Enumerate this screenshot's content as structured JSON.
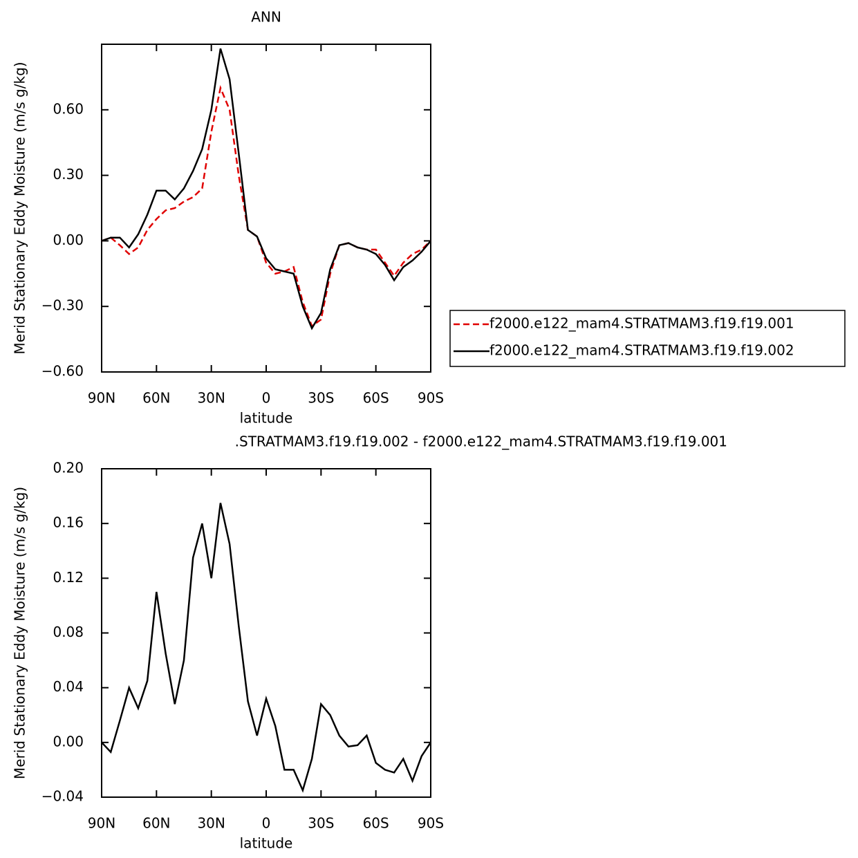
{
  "chart_data": [
    {
      "type": "line",
      "title": "ANN",
      "xlabel": "latitude",
      "ylabel": "Merid Stationary Eddy Moisture (m/s g/kg)",
      "x": [
        90,
        85,
        80,
        75,
        70,
        65,
        60,
        55,
        50,
        45,
        40,
        35,
        30,
        25,
        20,
        15,
        10,
        5,
        0,
        -5,
        -10,
        -15,
        -20,
        -25,
        -30,
        -35,
        -40,
        -45,
        -50,
        -55,
        -60,
        -65,
        -70,
        -75,
        -80,
        -85,
        -90
      ],
      "series": [
        {
          "name": "f2000.e122_mam4.STRATMAM3.f19.f19.001",
          "color": "#e00000",
          "dash": true,
          "values": [
            0,
            0.015,
            -0.02,
            -0.06,
            -0.03,
            0.05,
            0.1,
            0.14,
            0.15,
            0.18,
            0.2,
            0.24,
            0.5,
            0.7,
            0.6,
            0.3,
            0.05,
            0.02,
            -0.1,
            -0.15,
            -0.14,
            -0.12,
            -0.28,
            -0.39,
            -0.36,
            -0.15,
            -0.02,
            -0.01,
            -0.03,
            -0.04,
            -0.04,
            -0.1,
            -0.16,
            -0.1,
            -0.06,
            -0.04,
            0
          ]
        },
        {
          "name": "f2000.e122_mam4.STRATMAM3.f19.f19.002",
          "color": "#000000",
          "dash": false,
          "values": [
            0,
            0.015,
            0.015,
            -0.03,
            0.03,
            0.12,
            0.23,
            0.23,
            0.19,
            0.24,
            0.32,
            0.42,
            0.6,
            0.88,
            0.74,
            0.4,
            0.05,
            0.02,
            -0.08,
            -0.13,
            -0.14,
            -0.15,
            -0.3,
            -0.4,
            -0.33,
            -0.13,
            -0.02,
            -0.01,
            -0.03,
            -0.04,
            -0.06,
            -0.11,
            -0.18,
            -0.12,
            -0.09,
            -0.05,
            0
          ]
        }
      ],
      "xlim": [
        90,
        -90
      ],
      "xticks": [
        {
          "value": 90,
          "label": "90N"
        },
        {
          "value": 60,
          "label": "60N"
        },
        {
          "value": 30,
          "label": "30N"
        },
        0,
        {
          "value": -30,
          "label": "30S"
        },
        {
          "value": -60,
          "label": "60S"
        },
        {
          "value": -90,
          "label": "90S"
        }
      ],
      "ylim": [
        -0.6,
        0.9
      ],
      "yticks": [
        {
          "value": -0.6,
          "label": "−0.60"
        },
        {
          "value": -0.3,
          "label": "−0.30"
        },
        {
          "value": 0,
          "label": "0.00"
        },
        {
          "value": 0.3,
          "label": "0.30"
        },
        {
          "value": 0.6,
          "label": "0.60"
        }
      ],
      "legend": "outside-right"
    },
    {
      "type": "line",
      "title": ".STRATMAM3.f19.f19.002 - f2000.e122_mam4.STRATMAM3.f19.f19.001",
      "xlabel": "latitude",
      "ylabel": "Merid Stationary Eddy Moisture (m/s g/kg)",
      "x": [
        90,
        85,
        80,
        75,
        70,
        65,
        60,
        55,
        50,
        45,
        40,
        35,
        30,
        25,
        20,
        15,
        10,
        5,
        0,
        -5,
        -10,
        -15,
        -20,
        -25,
        -30,
        -35,
        -40,
        -45,
        -50,
        -55,
        -60,
        -65,
        -70,
        -75,
        -80,
        -85,
        -90
      ],
      "values": [
        0,
        -0.007,
        0.016,
        0.04,
        0.025,
        0.045,
        0.11,
        0.065,
        0.028,
        0.06,
        0.135,
        0.16,
        0.12,
        0.175,
        0.145,
        0.085,
        0.03,
        0.005,
        0.032,
        0.012,
        -0.02,
        -0.02,
        -0.035,
        -0.012,
        0.028,
        0.02,
        0.005,
        -0.003,
        -0.002,
        0.005,
        -0.015,
        -0.02,
        -0.022,
        -0.012,
        -0.028,
        -0.01,
        0
      ],
      "color": "#000000",
      "xlim": [
        90,
        -90
      ],
      "xticks": [
        {
          "value": 90,
          "label": "90N"
        },
        {
          "value": 60,
          "label": "60N"
        },
        {
          "value": 30,
          "label": "30N"
        },
        0,
        {
          "value": -30,
          "label": "30S"
        },
        {
          "value": -60,
          "label": "60S"
        },
        {
          "value": -90,
          "label": "90S"
        }
      ],
      "ylim": [
        -0.04,
        0.2
      ],
      "yticks": [
        {
          "value": -0.04,
          "label": "−0.04"
        },
        {
          "value": 0,
          "label": "0.00"
        },
        {
          "value": 0.04,
          "label": "0.04"
        },
        {
          "value": 0.08,
          "label": "0.08"
        },
        {
          "value": 0.12,
          "label": "0.12"
        },
        {
          "value": 0.16,
          "label": "0.16"
        },
        {
          "value": 0.2,
          "label": "0.20"
        }
      ]
    }
  ]
}
